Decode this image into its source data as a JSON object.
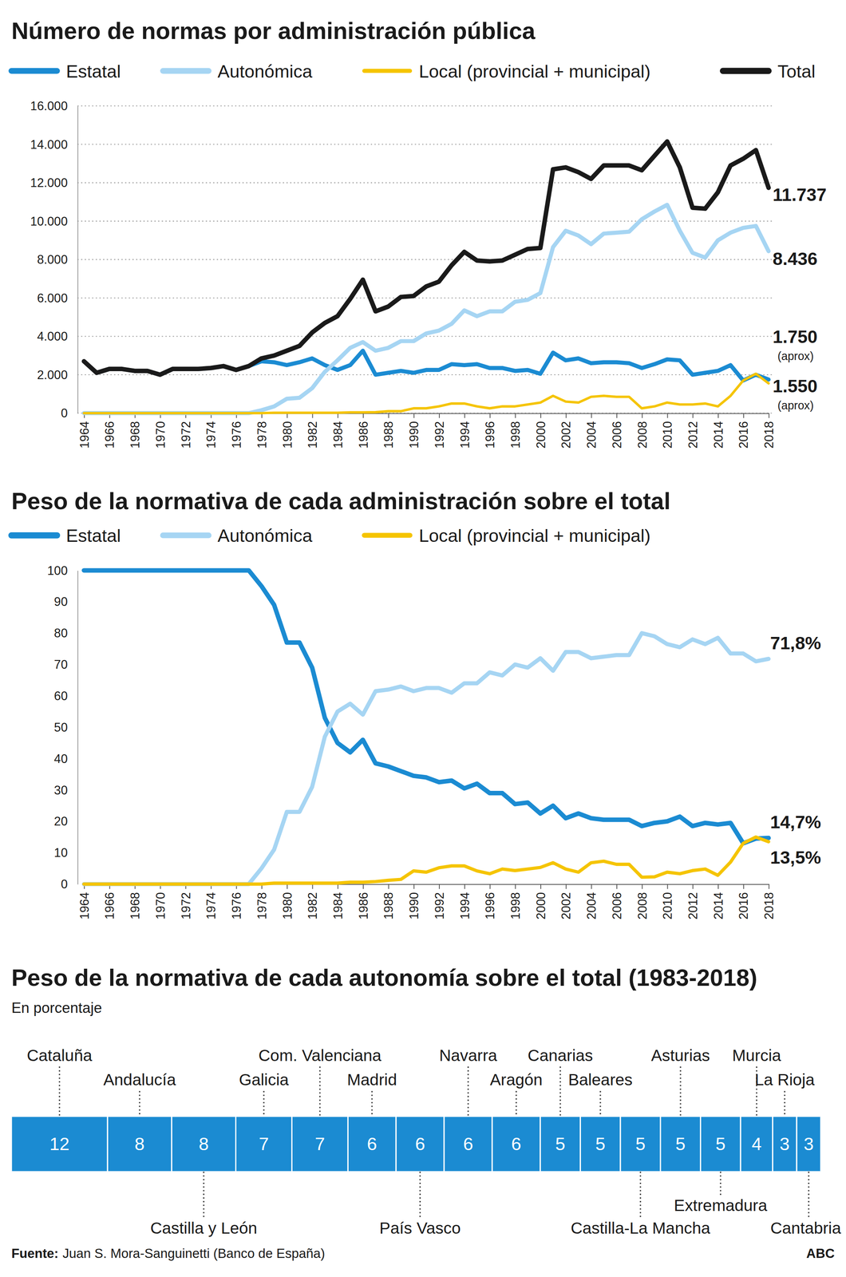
{
  "chart_data": [
    {
      "type": "line",
      "title": "Número de normas por administración pública",
      "legend": "top",
      "grid": true,
      "x": [
        1964,
        1965,
        1966,
        1967,
        1968,
        1969,
        1970,
        1971,
        1972,
        1973,
        1974,
        1975,
        1976,
        1977,
        1978,
        1979,
        1980,
        1981,
        1982,
        1983,
        1984,
        1985,
        1986,
        1987,
        1988,
        1989,
        1990,
        1991,
        1992,
        1993,
        1994,
        1995,
        1996,
        1997,
        1998,
        1999,
        2000,
        2001,
        2002,
        2003,
        2004,
        2005,
        2006,
        2007,
        2008,
        2009,
        2010,
        2011,
        2012,
        2013,
        2014,
        2015,
        2016,
        2017,
        2018
      ],
      "xlim": [
        1964,
        2018
      ],
      "xticks": [
        1964,
        1966,
        1968,
        1970,
        1972,
        1974,
        1976,
        1978,
        1980,
        1982,
        1984,
        1986,
        1988,
        1990,
        1992,
        1994,
        1996,
        1998,
        2000,
        2002,
        2004,
        2006,
        2008,
        2010,
        2012,
        2014,
        2016,
        2018
      ],
      "ylim": [
        0,
        16000
      ],
      "yticks": [
        0,
        {
          "value": 2000,
          "label": "2.000"
        },
        {
          "value": 4000,
          "label": "4.000"
        },
        {
          "value": 6000,
          "label": "6.000"
        },
        {
          "value": 8000,
          "label": "8.000"
        },
        {
          "value": 10000,
          "label": "10.000"
        },
        {
          "value": 12000,
          "label": "12.000"
        },
        {
          "value": 14000,
          "label": "14.000"
        },
        {
          "value": 16000,
          "label": "16.000"
        }
      ],
      "series": [
        {
          "name": "Estatal",
          "color": "#1b8bd2",
          "values": [
            2700,
            2100,
            2300,
            2300,
            2200,
            2200,
            2000,
            2300,
            2300,
            2300,
            2350,
            2450,
            2250,
            2450,
            2700,
            2650,
            2500,
            2650,
            2850,
            2500,
            2250,
            2500,
            3250,
            2000,
            2100,
            2200,
            2100,
            2250,
            2250,
            2550,
            2500,
            2550,
            2350,
            2350,
            2200,
            2250,
            2050,
            3150,
            2750,
            2850,
            2600,
            2650,
            2650,
            2600,
            2350,
            2550,
            2800,
            2750,
            2000,
            2100,
            2200,
            2500,
            1700,
            2000,
            1750
          ],
          "annotation": "1.750",
          "annotation_note": "(aprox)"
        },
        {
          "name": "Autonómica",
          "color": "#a6d5f3",
          "values": [
            0,
            0,
            0,
            0,
            0,
            0,
            0,
            0,
            0,
            0,
            0,
            0,
            0,
            0,
            150,
            350,
            750,
            800,
            1300,
            2150,
            2750,
            3400,
            3700,
            3250,
            3400,
            3750,
            3750,
            4150,
            4300,
            4650,
            5350,
            5050,
            5300,
            5300,
            5800,
            5900,
            6250,
            8650,
            9500,
            9250,
            8800,
            9350,
            9400,
            9450,
            10100,
            10500,
            10850,
            9500,
            8350,
            8100,
            9000,
            9400,
            9650,
            9750,
            8436
          ],
          "annotation": "8.436"
        },
        {
          "name": "Local (provincial + municipal)",
          "color": "#f5c400",
          "values": [
            0,
            0,
            0,
            0,
            0,
            0,
            0,
            0,
            0,
            0,
            0,
            0,
            0,
            0,
            0,
            20,
            20,
            20,
            20,
            20,
            20,
            40,
            40,
            50,
            100,
            100,
            250,
            250,
            350,
            500,
            500,
            350,
            250,
            350,
            350,
            450,
            550,
            900,
            600,
            550,
            850,
            900,
            850,
            850,
            250,
            350,
            550,
            450,
            450,
            500,
            350,
            900,
            1700,
            2050,
            1550
          ],
          "annotation": "1.550",
          "annotation_note": "(aprox)"
        },
        {
          "name": "Total",
          "color": "#1a1a1a",
          "values": [
            2700,
            2100,
            2300,
            2300,
            2200,
            2200,
            2000,
            2300,
            2300,
            2300,
            2350,
            2450,
            2250,
            2450,
            2850,
            3000,
            3250,
            3500,
            4200,
            4700,
            5050,
            5950,
            6950,
            5300,
            5550,
            6050,
            6100,
            6600,
            6850,
            7700,
            8400,
            7950,
            7900,
            7950,
            8250,
            8550,
            8600,
            12700,
            12800,
            12550,
            12200,
            12900,
            12900,
            12900,
            12650,
            13400,
            14150,
            12800,
            10700,
            10650,
            11500,
            12900,
            13250,
            13700,
            11737
          ],
          "annotation": "11.737"
        }
      ]
    },
    {
      "type": "line",
      "title": "Peso de la normativa de cada administración sobre el total",
      "legend": "top",
      "grid": false,
      "x": [
        1964,
        1965,
        1966,
        1967,
        1968,
        1969,
        1970,
        1971,
        1972,
        1973,
        1974,
        1975,
        1976,
        1977,
        1978,
        1979,
        1980,
        1981,
        1982,
        1983,
        1984,
        1985,
        1986,
        1987,
        1988,
        1989,
        1990,
        1991,
        1992,
        1993,
        1994,
        1995,
        1996,
        1997,
        1998,
        1999,
        2000,
        2001,
        2002,
        2003,
        2004,
        2005,
        2006,
        2007,
        2008,
        2009,
        2010,
        2011,
        2012,
        2013,
        2014,
        2015,
        2016,
        2017,
        2018
      ],
      "xlim": [
        1964,
        2018
      ],
      "xticks": [
        1964,
        1966,
        1968,
        1970,
        1972,
        1974,
        1976,
        1978,
        1980,
        1982,
        1984,
        1986,
        1988,
        1990,
        1992,
        1994,
        1996,
        1998,
        2000,
        2002,
        2004,
        2006,
        2008,
        2010,
        2012,
        2014,
        2016,
        2018
      ],
      "ylim": [
        0,
        100
      ],
      "yticks": [
        0,
        10,
        20,
        30,
        40,
        50,
        60,
        70,
        80,
        90,
        100
      ],
      "series": [
        {
          "name": "Estatal",
          "color": "#1b8bd2",
          "values": [
            100,
            100,
            100,
            100,
            100,
            100,
            100,
            100,
            100,
            100,
            100,
            100,
            100,
            100,
            95,
            89,
            77,
            77,
            69,
            53,
            45,
            42,
            46,
            38.5,
            37.5,
            36,
            34.5,
            34,
            32.5,
            33,
            30.5,
            32,
            29,
            29,
            25.5,
            26,
            22.5,
            25,
            21,
            22.5,
            21,
            20.5,
            20.5,
            20.5,
            18.5,
            19.5,
            20,
            21.5,
            18.5,
            19.5,
            19,
            19.5,
            13,
            14.5,
            14.7
          ],
          "annotation": "14,7%"
        },
        {
          "name": "Autonómica",
          "color": "#a6d5f3",
          "values": [
            0,
            0,
            0,
            0,
            0,
            0,
            0,
            0,
            0,
            0,
            0,
            0,
            0,
            0,
            5,
            11,
            23,
            23,
            31,
            47,
            55,
            57.5,
            54,
            61.5,
            62,
            63,
            61.5,
            62.5,
            62.5,
            61,
            64,
            64,
            67.5,
            66.5,
            70,
            69,
            72,
            68,
            74,
            74,
            72,
            72.5,
            73,
            73,
            80,
            79,
            76.5,
            75.5,
            78,
            76.5,
            78.5,
            73.5,
            73.5,
            71,
            71.8
          ],
          "annotation": "71,8%"
        },
        {
          "name": "Local (provincial + municipal)",
          "color": "#f5c400",
          "values": [
            0,
            0,
            0,
            0,
            0,
            0,
            0,
            0,
            0,
            0,
            0,
            0,
            0,
            0,
            0,
            0.3,
            0.3,
            0.3,
            0.3,
            0.3,
            0.3,
            0.6,
            0.6,
            0.8,
            1.2,
            1.5,
            4.2,
            3.8,
            5.2,
            5.8,
            5.8,
            4.2,
            3.3,
            4.8,
            4.3,
            4.8,
            5.3,
            6.8,
            4.8,
            3.8,
            6.8,
            7.3,
            6.3,
            6.3,
            2.2,
            2.3,
            3.8,
            3.3,
            4.3,
            4.8,
            2.8,
            7,
            13,
            15,
            13.5
          ],
          "annotation": "13,5%"
        }
      ]
    },
    {
      "type": "bar",
      "orientation": "horizontal",
      "stacked": true,
      "data_labels": true,
      "tick_labels": false,
      "title": "Peso de la normativa de cada autonomía sobre el total (1983-2018)",
      "subtitle": "En porcentaje",
      "color": "#1b8bd2",
      "xlim": [
        0,
        101
      ],
      "categories": [
        "Cataluña",
        "Andalucía",
        "Castilla y León",
        "Galicia",
        "Com. Valenciana",
        "Madrid",
        "País Vasco",
        "Navarra",
        "Aragón",
        "Canarias",
        "Baleares",
        "Castilla-La Mancha",
        "Asturias",
        "Extremadura",
        "Murcia",
        "La Rioja",
        "Cantabria"
      ],
      "values": [
        12,
        8,
        8,
        7,
        7,
        6,
        6,
        6,
        6,
        5,
        5,
        5,
        5,
        5,
        4,
        3,
        3
      ]
    }
  ],
  "source_label": "Fuente:",
  "source": "Juan S. Mora-Sanguinetti (Banco de España)",
  "credit": "ABC"
}
